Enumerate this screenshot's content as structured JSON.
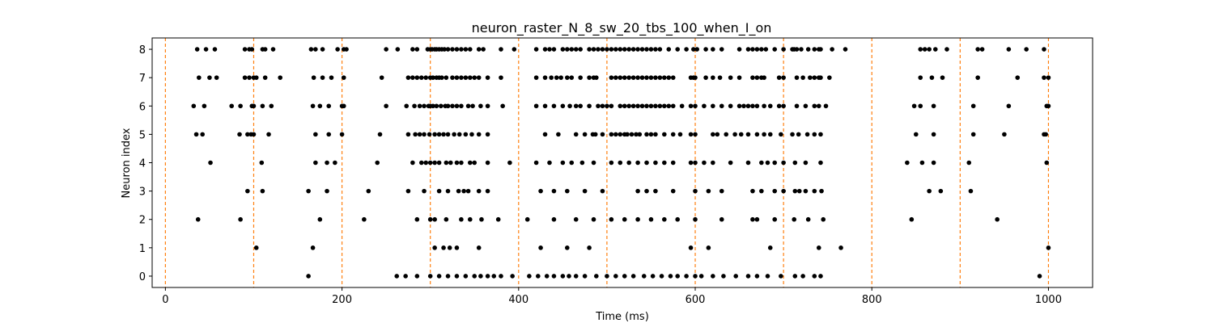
{
  "chart_data": {
    "type": "scatter",
    "title": "neuron_raster_N_8_sw_20_tbs_100_when_I_on",
    "xlabel": "Time (ms)",
    "ylabel": "Neuron index",
    "xlim": [
      -15,
      1050
    ],
    "ylim": [
      -0.4,
      8.4
    ],
    "xticks": [
      0,
      200,
      400,
      600,
      800,
      1000
    ],
    "yticks": [
      0,
      1,
      2,
      3,
      4,
      5,
      6,
      7,
      8
    ],
    "grid": false,
    "marker_color": "#000000",
    "vline_color": "#ff7f0e",
    "vlines": [
      0,
      100,
      200,
      300,
      400,
      500,
      600,
      700,
      800,
      900,
      1000
    ],
    "series": [
      {
        "neuron": 8,
        "times": [
          36,
          46,
          56,
          90,
          95,
          98,
          110,
          113,
          122,
          165,
          170,
          178,
          195,
          202,
          205,
          250,
          263,
          280,
          285,
          297,
          300,
          302,
          305,
          307,
          310,
          313,
          316,
          320,
          325,
          330,
          335,
          340,
          345,
          355,
          360,
          380,
          395,
          420,
          430,
          435,
          440,
          450,
          455,
          460,
          465,
          470,
          480,
          485,
          490,
          495,
          500,
          505,
          510,
          515,
          520,
          525,
          530,
          535,
          540,
          545,
          550,
          555,
          560,
          570,
          580,
          590,
          598,
          602,
          612,
          620,
          630,
          650,
          660,
          665,
          670,
          675,
          680,
          690,
          700,
          710,
          712,
          715,
          720,
          728,
          735,
          740,
          742,
          755,
          770,
          855,
          860,
          865,
          872,
          885,
          920,
          925,
          955,
          975,
          995
        ]
      },
      {
        "neuron": 7,
        "times": [
          38,
          50,
          58,
          90,
          95,
          100,
          103,
          113,
          130,
          168,
          178,
          188,
          202,
          245,
          275,
          280,
          285,
          290,
          295,
          300,
          303,
          307,
          310,
          313,
          318,
          325,
          330,
          335,
          340,
          345,
          350,
          355,
          365,
          380,
          420,
          430,
          437,
          443,
          448,
          455,
          460,
          470,
          480,
          485,
          488,
          505,
          510,
          515,
          520,
          525,
          530,
          535,
          540,
          545,
          550,
          555,
          560,
          565,
          570,
          575,
          595,
          598,
          600,
          612,
          620,
          628,
          640,
          650,
          665,
          670,
          675,
          678,
          695,
          700,
          715,
          722,
          730,
          735,
          740,
          742,
          752,
          855,
          868,
          880,
          920,
          965,
          995,
          1000
        ]
      },
      {
        "neuron": 6,
        "times": [
          32,
          44,
          75,
          85,
          98,
          100,
          110,
          120,
          167,
          175,
          185,
          200,
          202,
          250,
          273,
          282,
          288,
          293,
          298,
          300,
          303,
          307,
          312,
          317,
          320,
          325,
          330,
          335,
          343,
          348,
          357,
          365,
          382,
          420,
          430,
          440,
          450,
          458,
          465,
          470,
          480,
          490,
          495,
          500,
          505,
          515,
          520,
          525,
          530,
          535,
          540,
          545,
          550,
          555,
          560,
          565,
          570,
          575,
          585,
          595,
          600,
          610,
          620,
          630,
          640,
          650,
          655,
          660,
          665,
          670,
          678,
          685,
          695,
          700,
          715,
          725,
          735,
          740,
          748,
          848,
          855,
          870,
          915,
          955,
          998,
          1000
        ]
      },
      {
        "neuron": 5,
        "times": [
          35,
          42,
          84,
          93,
          97,
          100,
          117,
          170,
          185,
          200,
          243,
          275,
          283,
          288,
          293,
          299,
          305,
          310,
          315,
          320,
          327,
          333,
          340,
          347,
          355,
          365,
          430,
          445,
          465,
          475,
          484,
          487,
          495,
          505,
          510,
          515,
          520,
          523,
          528,
          533,
          537,
          545,
          550,
          555,
          565,
          575,
          583,
          595,
          600,
          620,
          625,
          635,
          645,
          652,
          660,
          670,
          678,
          685,
          697,
          710,
          717,
          727,
          735,
          742,
          850,
          870,
          915,
          950,
          995,
          997
        ]
      },
      {
        "neuron": 4,
        "times": [
          51,
          109,
          170,
          183,
          192,
          240,
          280,
          290,
          295,
          300,
          305,
          310,
          318,
          323,
          330,
          335,
          345,
          350,
          365,
          390,
          420,
          435,
          450,
          460,
          472,
          485,
          505,
          515,
          525,
          535,
          545,
          555,
          565,
          575,
          595,
          600,
          610,
          620,
          640,
          660,
          675,
          682,
          690,
          700,
          713,
          725,
          742,
          840,
          857,
          870,
          910,
          998
        ]
      },
      {
        "neuron": 3,
        "times": [
          93,
          110,
          162,
          183,
          230,
          275,
          293,
          310,
          320,
          332,
          338,
          343,
          355,
          365,
          425,
          440,
          455,
          475,
          495,
          535,
          545,
          555,
          575,
          600,
          615,
          630,
          665,
          675,
          690,
          700,
          713,
          718,
          725,
          735,
          743,
          865,
          878,
          912
        ]
      },
      {
        "neuron": 2,
        "times": [
          37,
          85,
          175,
          225,
          285,
          300,
          305,
          318,
          335,
          345,
          358,
          377,
          410,
          440,
          465,
          485,
          505,
          520,
          535,
          550,
          565,
          580,
          600,
          630,
          665,
          670,
          690,
          712,
          728,
          745,
          845,
          942
        ]
      },
      {
        "neuron": 1,
        "times": [
          103,
          167,
          305,
          315,
          322,
          330,
          355,
          425,
          455,
          480,
          595,
          615,
          685,
          740,
          765,
          1000
        ]
      },
      {
        "neuron": 0,
        "times": [
          162,
          262,
          272,
          285,
          300,
          310,
          320,
          330,
          340,
          350,
          357,
          365,
          372,
          380,
          393,
          412,
          422,
          432,
          440,
          450,
          457,
          465,
          475,
          488,
          500,
          510,
          520,
          530,
          542,
          552,
          562,
          572,
          580,
          590,
          600,
          607,
          620,
          632,
          646,
          660,
          670,
          682,
          697,
          713,
          722,
          735,
          742,
          990
        ]
      }
    ]
  }
}
